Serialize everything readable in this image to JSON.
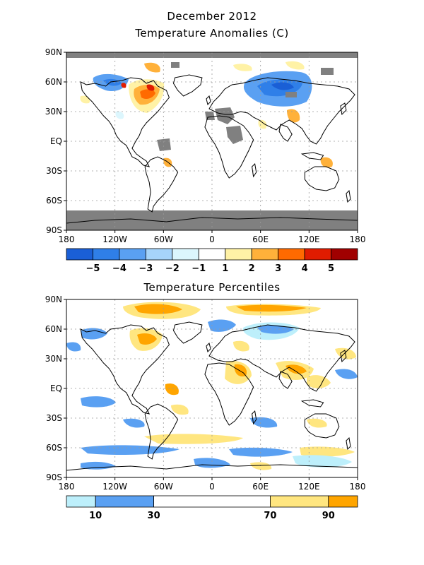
{
  "header": {
    "title": "December 2012",
    "panel1_title": "Temperature Anomalies (C)",
    "panel2_title": "Temperature Percentiles"
  },
  "axes": {
    "lat_labels": [
      "90N",
      "60N",
      "30N",
      "EQ",
      "30S",
      "60S",
      "90S"
    ],
    "lat_values": [
      90,
      60,
      30,
      0,
      -30,
      -60,
      -90
    ],
    "lon_labels": [
      "180",
      "120W",
      "60W",
      "0",
      "60E",
      "120E",
      "180"
    ],
    "lon_values": [
      -180,
      -120,
      -60,
      0,
      60,
      120,
      180
    ]
  },
  "legend1": {
    "labels": [
      "−5",
      "−4",
      "−3",
      "−2",
      "−1",
      "1",
      "2",
      "3",
      "4",
      "5"
    ],
    "colors": [
      "#1a5fd6",
      "#2f7fe8",
      "#5aa0f2",
      "#a6d4fa",
      "#dcf6fd",
      "#ffffff",
      "#fff2a6",
      "#ffb13a",
      "#ff6a00",
      "#e01c00",
      "#a00000"
    ]
  },
  "legend2": {
    "labels": [
      "10",
      "30",
      "70",
      "90"
    ],
    "colors": [
      "#bdeffb",
      "#5aa0f2",
      "#ffffff",
      "#ffe680",
      "#ffa500"
    ]
  },
  "colors": {
    "missing": "#808080",
    "coast": "#000000",
    "grid": "#9a9a9a"
  }
}
